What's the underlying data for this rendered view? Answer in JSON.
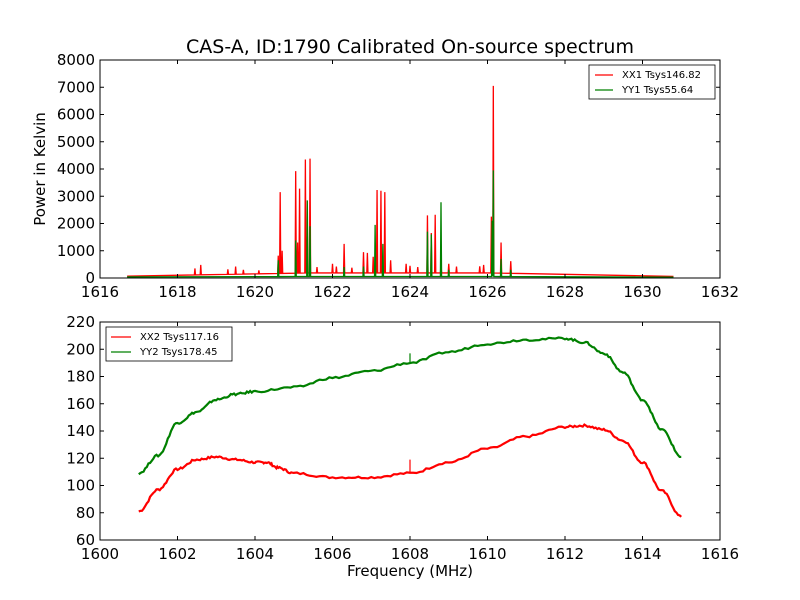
{
  "chart_data": [
    {
      "type": "line",
      "title": "CAS-A, ID:1790 Calibrated On-source spectrum",
      "xlabel": "",
      "ylabel": "Power in Kelvin",
      "xlim": [
        1616,
        1632
      ],
      "ylim": [
        0,
        8000
      ],
      "xticks": [
        "1616",
        "1618",
        "1620",
        "1622",
        "1624",
        "1626",
        "1628",
        "1630",
        "1632"
      ],
      "yticks": [
        "0",
        "1000",
        "2000",
        "3000",
        "4000",
        "5000",
        "6000",
        "7000",
        "8000"
      ],
      "legend_position": "top-right",
      "grid": false,
      "baseline": {
        "x_start": 1616.7,
        "x_end": 1630.8,
        "XX1": [
          70,
          185,
          185,
          60
        ],
        "YY1": [
          40,
          55,
          55,
          30
        ]
      },
      "series": [
        {
          "name": "XX1 Tsys146.82",
          "color": "#ff0000",
          "peaks": [
            [
              1618.45,
              350
            ],
            [
              1618.6,
              480
            ],
            [
              1619.3,
              320
            ],
            [
              1619.5,
              420
            ],
            [
              1619.7,
              300
            ],
            [
              1620.1,
              280
            ],
            [
              1620.6,
              820
            ],
            [
              1620.65,
              3150
            ],
            [
              1620.7,
              1000
            ],
            [
              1621.05,
              3920
            ],
            [
              1621.1,
              1300
            ],
            [
              1621.15,
              3280
            ],
            [
              1621.3,
              4350
            ],
            [
              1621.35,
              2100
            ],
            [
              1621.42,
              4380
            ],
            [
              1621.6,
              400
            ],
            [
              1622.0,
              520
            ],
            [
              1622.1,
              420
            ],
            [
              1622.3,
              1250
            ],
            [
              1622.5,
              380
            ],
            [
              1622.8,
              950
            ],
            [
              1622.9,
              920
            ],
            [
              1623.05,
              780
            ],
            [
              1623.15,
              3230
            ],
            [
              1623.25,
              3200
            ],
            [
              1623.35,
              3150
            ],
            [
              1623.5,
              650
            ],
            [
              1623.9,
              520
            ],
            [
              1624.0,
              450
            ],
            [
              1624.2,
              400
            ],
            [
              1624.45,
              2300
            ],
            [
              1624.55,
              1650
            ],
            [
              1624.65,
              2320
            ],
            [
              1624.8,
              520
            ],
            [
              1625.0,
              520
            ],
            [
              1625.2,
              420
            ],
            [
              1625.8,
              430
            ],
            [
              1625.9,
              480
            ],
            [
              1626.1,
              2250
            ],
            [
              1626.15,
              7050
            ],
            [
              1626.35,
              1300
            ],
            [
              1626.6,
              620
            ]
          ]
        },
        {
          "name": "YY1 Tsys55.64",
          "color": "#008000",
          "peaks": [
            [
              1620.6,
              650
            ],
            [
              1621.05,
              1380
            ],
            [
              1621.35,
              2850
            ],
            [
              1621.42,
              1900
            ],
            [
              1622.3,
              400
            ],
            [
              1622.8,
              420
            ],
            [
              1623.1,
              1950
            ],
            [
              1623.3,
              1250
            ],
            [
              1624.45,
              1700
            ],
            [
              1624.55,
              1600
            ],
            [
              1624.8,
              2780
            ],
            [
              1625.0,
              300
            ],
            [
              1626.12,
              2100
            ],
            [
              1626.15,
              3950
            ],
            [
              1626.35,
              700
            ],
            [
              1626.6,
              300
            ]
          ]
        }
      ]
    },
    {
      "type": "line",
      "title": "",
      "xlabel": "Frequency (MHz)",
      "ylabel": "",
      "xlim": [
        1600,
        1616
      ],
      "ylim": [
        60,
        220
      ],
      "xticks": [
        "1600",
        "1602",
        "1604",
        "1606",
        "1608",
        "1610",
        "1612",
        "1614",
        "1616"
      ],
      "yticks": [
        "60",
        "80",
        "100",
        "120",
        "140",
        "160",
        "180",
        "200",
        "220"
      ],
      "legend_position": "top-left",
      "grid": false,
      "series": [
        {
          "name": "XX2 Tsys117.16",
          "color": "#ff0000",
          "x": [
            1601,
            1601.5,
            1602,
            1602.5,
            1603,
            1603.5,
            1604,
            1604.3,
            1604.6,
            1605,
            1606,
            1607,
            1608,
            1609,
            1610,
            1611,
            1612,
            1612.5,
            1613,
            1613.5,
            1614,
            1614.5,
            1615
          ],
          "y": [
            81,
            97,
            112,
            119,
            121,
            119,
            117,
            117,
            113,
            109,
            106,
            106,
            109,
            117,
            127,
            136,
            143,
            144,
            141,
            133,
            117,
            96,
            77
          ],
          "spikes": [
            [
              1608,
              119
            ]
          ]
        },
        {
          "name": "YY2 Tsys178.45",
          "color": "#008000",
          "x": [
            1601,
            1601.5,
            1602,
            1602.5,
            1603,
            1603.5,
            1604,
            1605,
            1606,
            1607,
            1608,
            1609,
            1610,
            1611,
            1612,
            1612.5,
            1613,
            1613.5,
            1614,
            1614.5,
            1615
          ],
          "y": [
            109,
            122,
            146,
            154,
            163,
            167,
            169,
            172,
            179,
            184,
            190,
            198,
            204,
            207,
            208,
            205,
            197,
            183,
            163,
            141,
            121
          ],
          "spikes": [
            [
              1608,
              197
            ]
          ]
        }
      ]
    }
  ]
}
